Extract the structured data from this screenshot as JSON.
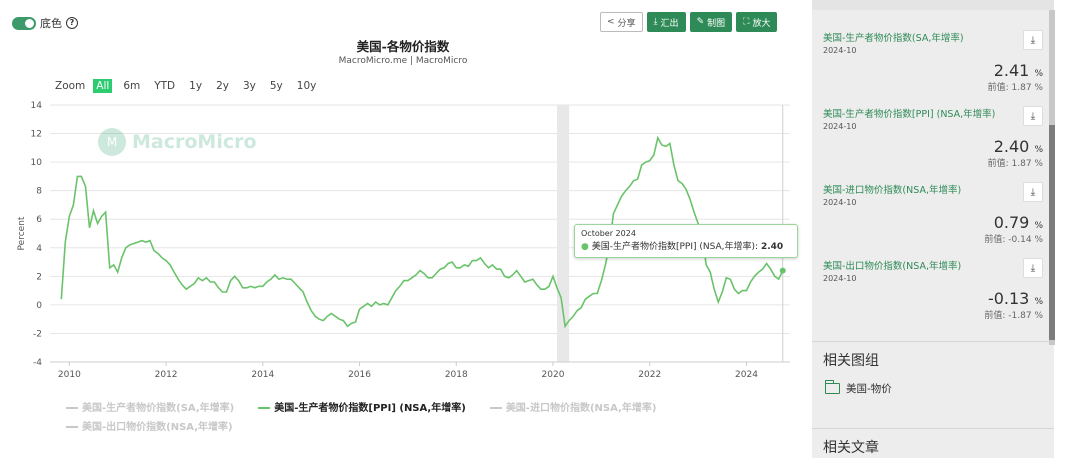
{
  "toggle": {
    "label": "底色",
    "on": true
  },
  "toolbar": {
    "share": "分享",
    "export": "汇出",
    "draw": "制图",
    "enlarge": "放大"
  },
  "zoom": {
    "label": "Zoom",
    "options": [
      "All",
      "6m",
      "YTD",
      "1y",
      "2y",
      "3y",
      "5y",
      "10y"
    ],
    "selected": "All"
  },
  "watermark": "MacroMicro",
  "tooltip": {
    "date": "October 2024",
    "series": "美国-生产者物价指数[PPI] (NSA,年增率)",
    "value": "2.40"
  },
  "chart_data": {
    "type": "line",
    "title": "美国-各物价指数",
    "subtitle": "MacroMicro.me | MacroMicro",
    "ylabel": "Percent",
    "xlabel": "",
    "ylim": [
      -4,
      14
    ],
    "yticks": [
      -4,
      -2,
      0,
      2,
      4,
      6,
      8,
      10,
      12,
      14
    ],
    "xticks": [
      "2010",
      "2012",
      "2014",
      "2016",
      "2018",
      "2020",
      "2022",
      "2024"
    ],
    "grid": true,
    "shaded_period": [
      "2020-02",
      "2020-05"
    ],
    "legend": [
      "美国-生产者物价指数(SA,年增率)",
      "美国-生产者物价指数[PPI] (NSA,年增率)",
      "美国-进口物价指数(NSA,年增率)",
      "美国-出口物价指数(NSA,年增率)"
    ],
    "legend_active": "美国-生产者物价指数[PPI] (NSA,年增率)",
    "legend_position": "bottom",
    "series": [
      {
        "name": "美国-生产者物价指数[PPI] (NSA,年增率)",
        "color": "#6ac36a",
        "points": [
          [
            "2009-11",
            0.4
          ],
          [
            "2009-12",
            4.4
          ],
          [
            "2010-01",
            6.2
          ],
          [
            "2010-02",
            7.0
          ],
          [
            "2010-03",
            9.0
          ],
          [
            "2010-04",
            9.0
          ],
          [
            "2010-05",
            8.3
          ],
          [
            "2010-06",
            5.4
          ],
          [
            "2010-07",
            6.6
          ],
          [
            "2010-08",
            5.7
          ],
          [
            "2010-09",
            6.2
          ],
          [
            "2010-10",
            6.5
          ],
          [
            "2010-11",
            2.6
          ],
          [
            "2010-12",
            2.8
          ],
          [
            "2011-01",
            2.3
          ],
          [
            "2011-02",
            3.3
          ],
          [
            "2011-03",
            4.0
          ],
          [
            "2011-04",
            4.2
          ],
          [
            "2011-05",
            4.3
          ],
          [
            "2011-06",
            4.4
          ],
          [
            "2011-07",
            4.5
          ],
          [
            "2011-08",
            4.4
          ],
          [
            "2011-09",
            4.5
          ],
          [
            "2011-10",
            3.8
          ],
          [
            "2011-11",
            3.6
          ],
          [
            "2011-12",
            3.3
          ],
          [
            "2012-01",
            3.1
          ],
          [
            "2012-02",
            2.8
          ],
          [
            "2012-03",
            2.3
          ],
          [
            "2012-04",
            1.8
          ],
          [
            "2012-05",
            1.4
          ],
          [
            "2012-06",
            1.1
          ],
          [
            "2012-07",
            1.3
          ],
          [
            "2012-08",
            1.5
          ],
          [
            "2012-09",
            1.9
          ],
          [
            "2012-10",
            1.7
          ],
          [
            "2012-11",
            1.9
          ],
          [
            "2012-12",
            1.6
          ],
          [
            "2013-01",
            1.6
          ],
          [
            "2013-02",
            1.2
          ],
          [
            "2013-03",
            0.9
          ],
          [
            "2013-04",
            0.9
          ],
          [
            "2013-05",
            1.7
          ],
          [
            "2013-06",
            2.0
          ],
          [
            "2013-07",
            1.7
          ],
          [
            "2013-08",
            1.2
          ],
          [
            "2013-09",
            1.2
          ],
          [
            "2013-10",
            1.3
          ],
          [
            "2013-11",
            1.2
          ],
          [
            "2013-12",
            1.3
          ],
          [
            "2014-01",
            1.3
          ],
          [
            "2014-02",
            1.6
          ],
          [
            "2014-03",
            1.8
          ],
          [
            "2014-04",
            2.1
          ],
          [
            "2014-05",
            1.8
          ],
          [
            "2014-06",
            1.9
          ],
          [
            "2014-07",
            1.8
          ],
          [
            "2014-08",
            1.8
          ],
          [
            "2014-09",
            1.5
          ],
          [
            "2014-10",
            1.2
          ],
          [
            "2014-11",
            0.9
          ],
          [
            "2014-12",
            0.2
          ],
          [
            "2015-01",
            -0.4
          ],
          [
            "2015-02",
            -0.8
          ],
          [
            "2015-03",
            -1.0
          ],
          [
            "2015-04",
            -1.1
          ],
          [
            "2015-05",
            -0.8
          ],
          [
            "2015-06",
            -0.6
          ],
          [
            "2015-07",
            -0.8
          ],
          [
            "2015-08",
            -1.0
          ],
          [
            "2015-09",
            -1.1
          ],
          [
            "2015-10",
            -1.5
          ],
          [
            "2015-11",
            -1.3
          ],
          [
            "2015-12",
            -1.2
          ],
          [
            "2016-01",
            -0.3
          ],
          [
            "2016-02",
            -0.1
          ],
          [
            "2016-03",
            0.1
          ],
          [
            "2016-04",
            -0.1
          ],
          [
            "2016-05",
            0.2
          ],
          [
            "2016-06",
            0.0
          ],
          [
            "2016-07",
            0.1
          ],
          [
            "2016-08",
            0.0
          ],
          [
            "2016-09",
            0.5
          ],
          [
            "2016-10",
            1.0
          ],
          [
            "2016-11",
            1.3
          ],
          [
            "2016-12",
            1.7
          ],
          [
            "2017-01",
            1.7
          ],
          [
            "2017-02",
            1.9
          ],
          [
            "2017-03",
            2.1
          ],
          [
            "2017-04",
            2.4
          ],
          [
            "2017-05",
            2.2
          ],
          [
            "2017-06",
            1.9
          ],
          [
            "2017-07",
            1.9
          ],
          [
            "2017-08",
            2.2
          ],
          [
            "2017-09",
            2.5
          ],
          [
            "2017-10",
            2.6
          ],
          [
            "2017-11",
            2.9
          ],
          [
            "2017-12",
            3.0
          ],
          [
            "2018-01",
            2.6
          ],
          [
            "2018-02",
            2.6
          ],
          [
            "2018-03",
            2.8
          ],
          [
            "2018-04",
            2.7
          ],
          [
            "2018-05",
            3.1
          ],
          [
            "2018-06",
            3.1
          ],
          [
            "2018-07",
            3.3
          ],
          [
            "2018-08",
            2.9
          ],
          [
            "2018-09",
            2.6
          ],
          [
            "2018-10",
            2.8
          ],
          [
            "2018-11",
            2.5
          ],
          [
            "2018-12",
            2.5
          ],
          [
            "2019-01",
            2.0
          ],
          [
            "2019-02",
            1.9
          ],
          [
            "2019-03",
            2.1
          ],
          [
            "2019-04",
            2.4
          ],
          [
            "2019-05",
            2.0
          ],
          [
            "2019-06",
            1.6
          ],
          [
            "2019-07",
            1.7
          ],
          [
            "2019-08",
            1.8
          ],
          [
            "2019-09",
            1.4
          ],
          [
            "2019-10",
            1.1
          ],
          [
            "2019-11",
            1.1
          ],
          [
            "2019-12",
            1.3
          ],
          [
            "2020-01",
            2.0
          ],
          [
            "2020-02",
            1.2
          ],
          [
            "2020-03",
            0.5
          ],
          [
            "2020-04",
            -1.5
          ],
          [
            "2020-05",
            -1.1
          ],
          [
            "2020-06",
            -0.8
          ],
          [
            "2020-07",
            -0.4
          ],
          [
            "2020-08",
            -0.2
          ],
          [
            "2020-09",
            0.4
          ],
          [
            "2020-10",
            0.6
          ],
          [
            "2020-11",
            0.8
          ],
          [
            "2020-12",
            0.8
          ],
          [
            "2021-01",
            1.7
          ],
          [
            "2021-02",
            2.8
          ],
          [
            "2021-03",
            4.2
          ],
          [
            "2021-04",
            6.4
          ],
          [
            "2021-05",
            7.0
          ],
          [
            "2021-06",
            7.6
          ],
          [
            "2021-07",
            8.0
          ],
          [
            "2021-08",
            8.3
          ],
          [
            "2021-09",
            8.7
          ],
          [
            "2021-10",
            8.8
          ],
          [
            "2021-11",
            9.8
          ],
          [
            "2021-12",
            10.0
          ],
          [
            "2022-01",
            10.1
          ],
          [
            "2022-02",
            10.5
          ],
          [
            "2022-03",
            11.7
          ],
          [
            "2022-04",
            11.2
          ],
          [
            "2022-05",
            11.1
          ],
          [
            "2022-06",
            11.3
          ],
          [
            "2022-07",
            9.8
          ],
          [
            "2022-08",
            8.7
          ],
          [
            "2022-09",
            8.5
          ],
          [
            "2022-10",
            8.1
          ],
          [
            "2022-11",
            7.4
          ],
          [
            "2022-12",
            6.5
          ],
          [
            "2023-01",
            5.7
          ],
          [
            "2023-02",
            4.8
          ],
          [
            "2023-03",
            2.8
          ],
          [
            "2023-04",
            2.3
          ],
          [
            "2023-05",
            1.1
          ],
          [
            "2023-06",
            0.2
          ],
          [
            "2023-07",
            0.9
          ],
          [
            "2023-08",
            1.9
          ],
          [
            "2023-09",
            1.8
          ],
          [
            "2023-10",
            1.1
          ],
          [
            "2023-11",
            0.8
          ],
          [
            "2023-12",
            1.0
          ],
          [
            "2024-01",
            1.0
          ],
          [
            "2024-02",
            1.6
          ],
          [
            "2024-03",
            2.0
          ],
          [
            "2024-04",
            2.3
          ],
          [
            "2024-05",
            2.5
          ],
          [
            "2024-06",
            2.9
          ],
          [
            "2024-07",
            2.5
          ],
          [
            "2024-08",
            2.0
          ],
          [
            "2024-09",
            1.8
          ],
          [
            "2024-10",
            2.4
          ]
        ]
      }
    ]
  },
  "panel": {
    "cards": [
      {
        "name": "美国-生产者物价指数(SA,年增率)",
        "date": "2024-10",
        "value": "2.41",
        "unit": "%",
        "prev": "前值: 1.87 %"
      },
      {
        "name": "美国-生产者物价指数[PPI] (NSA,年增率)",
        "date": "2024-10",
        "value": "2.40",
        "unit": "%",
        "prev": "前值: 1.87 %"
      },
      {
        "name": "美国-进口物价指数(NSA,年增率)",
        "date": "2024-10",
        "value": "0.79",
        "unit": "%",
        "prev": "前值: -0.14 %"
      },
      {
        "name": "美国-出口物价指数(NSA,年增率)",
        "date": "2024-10",
        "value": "-0.13",
        "unit": "%",
        "prev": "前值: -1.87 %"
      }
    ],
    "related_title": "相关图组",
    "related_item": "美国-物价",
    "articles_title": "相关文章"
  }
}
